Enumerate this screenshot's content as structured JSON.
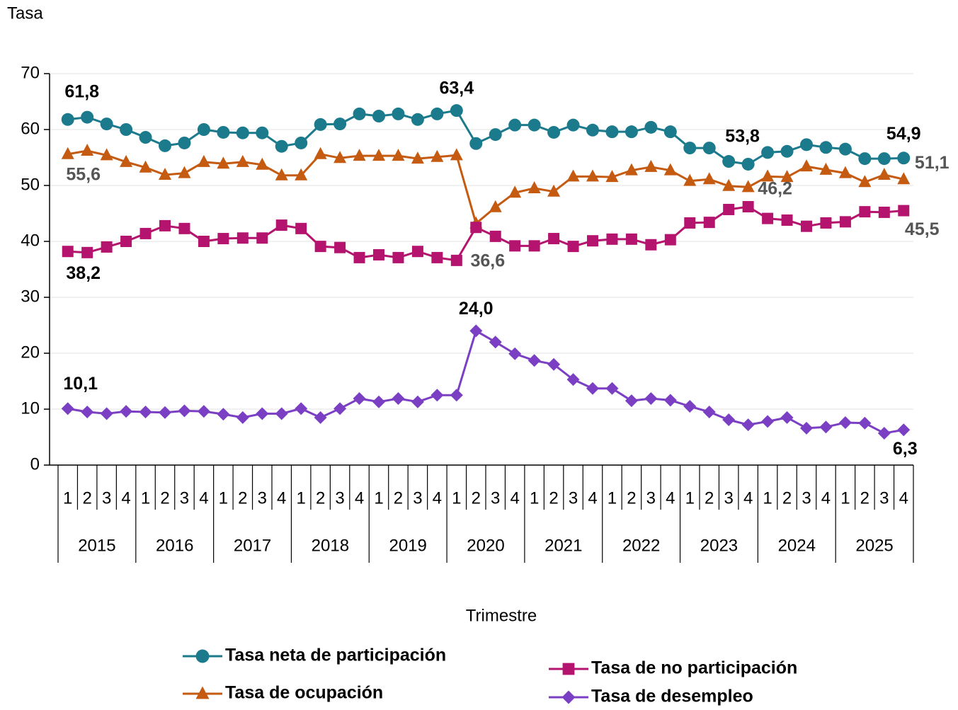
{
  "chart_data": {
    "type": "line",
    "y_label": "Tasa",
    "x_label": "Trimestre",
    "categories": [
      "1",
      "2",
      "3",
      "4",
      "1",
      "2",
      "3",
      "4",
      "1",
      "2",
      "3",
      "4",
      "1",
      "2",
      "3",
      "4",
      "1",
      "2",
      "3",
      "4",
      "1",
      "2",
      "3",
      "4",
      "1",
      "2",
      "3",
      "4",
      "1",
      "2",
      "3",
      "4",
      "1",
      "2",
      "3",
      "4",
      "1",
      "2",
      "3",
      "4",
      "1",
      "2",
      "3",
      "4"
    ],
    "years": [
      "2015",
      "2016",
      "2017",
      "2018",
      "2019",
      "2020",
      "2021",
      "2022",
      "2023",
      "2024",
      "2025"
    ],
    "ylim": [
      0,
      70
    ],
    "yticks": [
      0,
      10,
      20,
      30,
      40,
      50,
      60,
      70
    ],
    "grid": true,
    "series": [
      {
        "name": "Tasa neta de participación",
        "color": "#1b7a8c",
        "marker": "circle",
        "values": [
          61.8,
          62.2,
          61.0,
          60.0,
          58.6,
          57.1,
          57.6,
          60.0,
          59.5,
          59.4,
          59.4,
          57.0,
          57.6,
          60.9,
          61.0,
          62.8,
          62.4,
          62.8,
          61.8,
          62.8,
          63.4,
          57.5,
          59.1,
          60.8,
          60.8,
          59.5,
          60.8,
          59.9,
          59.6,
          59.6,
          60.4,
          59.6,
          56.7,
          56.7,
          54.3,
          53.8,
          55.9,
          56.1,
          57.3,
          56.8,
          56.5,
          54.8,
          54.8,
          54.9
        ],
        "value_labels": [
          "61,8",
          null,
          null,
          null,
          null,
          null,
          null,
          null,
          null,
          null,
          null,
          null,
          null,
          null,
          null,
          null,
          null,
          null,
          null,
          null,
          "63,4",
          null,
          null,
          null,
          null,
          null,
          null,
          null,
          null,
          null,
          null,
          null,
          null,
          null,
          null,
          "53,8",
          null,
          null,
          null,
          null,
          null,
          null,
          null,
          "54,9"
        ]
      },
      {
        "name": "Tasa de ocupación",
        "color": "#c55a11",
        "marker": "triangle",
        "values": [
          55.6,
          56.2,
          55.4,
          54.2,
          53.2,
          51.9,
          52.2,
          54.2,
          53.9,
          54.2,
          53.7,
          51.8,
          51.8,
          55.6,
          54.9,
          55.3,
          55.3,
          55.3,
          54.8,
          55.1,
          55.4,
          43.2,
          46.1,
          48.7,
          49.5,
          48.9,
          51.6,
          51.6,
          51.5,
          52.7,
          53.3,
          52.7,
          50.8,
          51.1,
          49.9,
          49.7,
          51.6,
          51.5,
          53.4,
          52.8,
          52.2,
          50.6,
          51.9,
          51.1
        ],
        "value_labels": [
          "55,6",
          null,
          null,
          null,
          null,
          null,
          null,
          null,
          null,
          null,
          null,
          null,
          null,
          null,
          null,
          null,
          null,
          null,
          null,
          null,
          null,
          null,
          null,
          null,
          null,
          null,
          null,
          null,
          null,
          null,
          null,
          null,
          null,
          null,
          null,
          null,
          null,
          null,
          null,
          null,
          null,
          null,
          null,
          "51,1"
        ]
      },
      {
        "name": "Tasa de no participación",
        "color": "#b5146e",
        "marker": "square",
        "values": [
          38.2,
          38.0,
          39.0,
          40.0,
          41.4,
          42.8,
          42.3,
          40.0,
          40.5,
          40.6,
          40.6,
          42.9,
          42.3,
          39.1,
          38.9,
          37.1,
          37.6,
          37.1,
          38.2,
          37.1,
          36.6,
          42.5,
          40.9,
          39.2,
          39.2,
          40.5,
          39.1,
          40.1,
          40.4,
          40.4,
          39.4,
          40.3,
          43.3,
          43.4,
          45.7,
          46.2,
          44.1,
          43.8,
          42.7,
          43.3,
          43.5,
          45.3,
          45.2,
          45.5
        ],
        "value_labels": [
          "38,2",
          null,
          null,
          null,
          null,
          null,
          null,
          null,
          null,
          null,
          null,
          null,
          null,
          null,
          null,
          null,
          null,
          null,
          null,
          null,
          "36,6",
          null,
          null,
          null,
          null,
          null,
          null,
          null,
          null,
          null,
          null,
          null,
          null,
          null,
          null,
          "46,2",
          null,
          null,
          null,
          null,
          null,
          null,
          null,
          "45,5"
        ]
      },
      {
        "name": "Tasa de desempleo",
        "color": "#7b3fc4",
        "marker": "diamond",
        "values": [
          10.1,
          9.5,
          9.2,
          9.6,
          9.5,
          9.4,
          9.7,
          9.6,
          9.1,
          8.5,
          9.2,
          9.2,
          10.1,
          8.5,
          10.1,
          11.9,
          11.3,
          11.9,
          11.3,
          12.5,
          12.5,
          24.0,
          22.0,
          19.9,
          18.7,
          18.0,
          15.3,
          13.7,
          13.7,
          11.5,
          11.9,
          11.6,
          10.5,
          9.5,
          8.1,
          7.2,
          7.8,
          8.5,
          6.6,
          6.8,
          7.6,
          7.5,
          5.7,
          6.3
        ],
        "value_labels": [
          "10,1",
          null,
          null,
          null,
          null,
          null,
          null,
          null,
          null,
          null,
          null,
          null,
          null,
          null,
          null,
          null,
          null,
          null,
          null,
          null,
          null,
          "24,0",
          null,
          null,
          null,
          null,
          null,
          null,
          null,
          null,
          null,
          null,
          null,
          null,
          null,
          null,
          null,
          null,
          null,
          null,
          null,
          null,
          null,
          "6,3"
        ]
      }
    ]
  }
}
